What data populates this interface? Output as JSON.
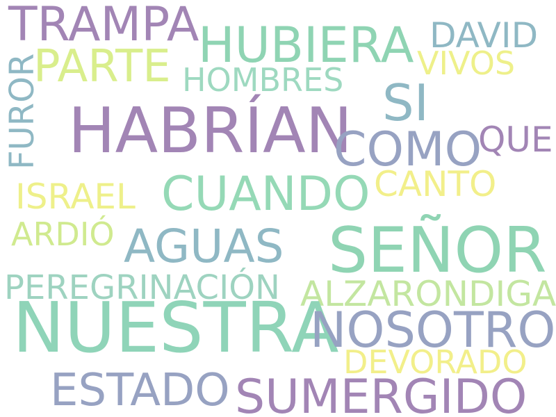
{
  "words": [
    {
      "key": "trampa",
      "text": "TRAMPA",
      "color": "#a285b5"
    },
    {
      "key": "hubiera",
      "text": "HUBIERA",
      "color": "#8fd4b3"
    },
    {
      "key": "david",
      "text": "DAVID",
      "color": "#8fb8c4"
    },
    {
      "key": "parte",
      "text": "PARTE",
      "color": "#d9ee8c"
    },
    {
      "key": "vivos",
      "text": "VIVOS",
      "color": "#eef08a"
    },
    {
      "key": "hombres",
      "text": "HOMBRES",
      "color": "#9ed9c0"
    },
    {
      "key": "si",
      "text": "SI",
      "color": "#8fb8c4"
    },
    {
      "key": "furor",
      "text": "FUROR",
      "color": "#8fb8c4"
    },
    {
      "key": "habrian",
      "text": "HABRÍAN",
      "color": "#a285b5"
    },
    {
      "key": "como",
      "text": "COMO",
      "color": "#97a2c2"
    },
    {
      "key": "que",
      "text": "QUE",
      "color": "#a285b5"
    },
    {
      "key": "canto",
      "text": "CANTO",
      "color": "#f2ef8a"
    },
    {
      "key": "cuando",
      "text": "CUANDO",
      "color": "#95d9b6"
    },
    {
      "key": "israel",
      "text": "ISRAEL",
      "color": "#eef08a"
    },
    {
      "key": "ardio",
      "text": "ARDIÓ",
      "color": "#d0ea8f"
    },
    {
      "key": "senor",
      "text": "SEÑOR",
      "color": "#8fd4b3"
    },
    {
      "key": "aguas",
      "text": "AGUAS",
      "color": "#8fb8c4"
    },
    {
      "key": "peregrinacion",
      "text": "PEREGRINACIÓN",
      "color": "#9ed3c0"
    },
    {
      "key": "alzarondiga",
      "text": "ALZARONDIGA",
      "color": "#c3e6a0"
    },
    {
      "key": "nuestra",
      "text": "NUESTRA",
      "color": "#8fd4b8"
    },
    {
      "key": "nosotros",
      "text": "NOSOTROS",
      "color": "#97a2c2"
    },
    {
      "key": "devorado",
      "text": "DEVORADO",
      "color": "#f2ef8a"
    },
    {
      "key": "estado",
      "text": "ESTADO",
      "color": "#97a2c2"
    },
    {
      "key": "sumergido",
      "text": "SUMERGIDO",
      "color": "#a285b5"
    }
  ]
}
